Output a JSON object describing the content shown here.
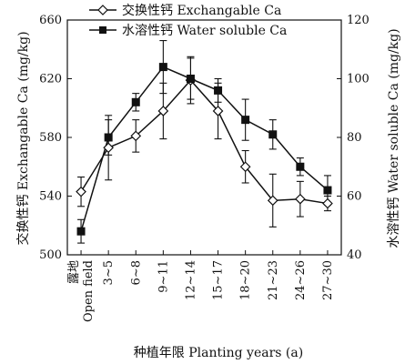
{
  "chart_data": {
    "type": "line",
    "title": "",
    "categories": [
      "露地\nOpen field",
      "3~5",
      "6~8",
      "9~11",
      "12~14",
      "15~17",
      "18~20",
      "21~23",
      "24~26",
      "27~30"
    ],
    "xlabel": "种植年限 Planting years (a)",
    "ylabel_left": "交换性钙 Exchangable Ca (mg/kg)",
    "ylabel_right": "水溶性钙 Water soluble Ca (mg/kg)",
    "ylim_left": [
      500,
      660
    ],
    "yticks_left": [
      500,
      540,
      580,
      620,
      660
    ],
    "ylim_right": [
      40,
      120
    ],
    "yticks_right": [
      40,
      60,
      80,
      100,
      120
    ],
    "legend_position": "top-left",
    "series": [
      {
        "name": "交换性钙 Exchangable Ca",
        "axis": "left",
        "marker": "open-diamond",
        "values": [
          543,
          573,
          581,
          598,
          619,
          598,
          560,
          537,
          538,
          535
        ],
        "error": [
          10,
          22,
          11,
          19,
          16,
          19,
          11,
          18,
          12,
          5
        ]
      },
      {
        "name": "水溶性钙 Water soluble Ca",
        "axis": "right",
        "marker": "filled-square",
        "values": [
          48,
          80,
          92,
          104,
          100,
          96,
          86,
          81,
          70,
          62
        ],
        "error": [
          4,
          6,
          3,
          9,
          7,
          4,
          7,
          5,
          3,
          5
        ]
      }
    ]
  }
}
